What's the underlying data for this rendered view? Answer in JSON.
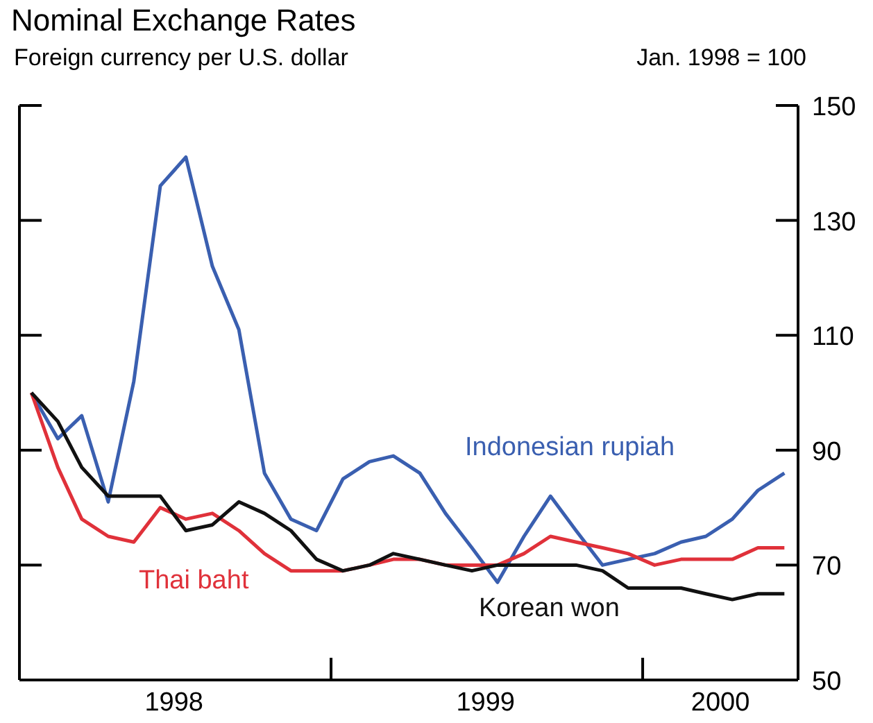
{
  "chart_data": {
    "type": "line",
    "title": "Nominal Exchange Rates",
    "subtitle": "Foreign currency per U.S. dollar",
    "ylabel": "Jan. 1998 = 100",
    "x": [
      "1998-01-15",
      "1998-02-15",
      "1998-03-15",
      "1998-04-15",
      "1998-05-15",
      "1998-06-15",
      "1998-07-15",
      "1998-08-15",
      "1998-09-15",
      "1998-10-15",
      "1998-11-15",
      "1998-12-15",
      "1999-01-15",
      "1999-02-15",
      "1999-03-15",
      "1999-04-15",
      "1999-05-15",
      "1999-06-15",
      "1999-07-15",
      "1999-08-15",
      "1999-09-15",
      "1999-10-15",
      "1999-11-15",
      "1999-12-15",
      "2000-01-15",
      "2000-02-15",
      "2000-03-15",
      "2000-04-15",
      "2000-05-15",
      "2000-06-15"
    ],
    "series": [
      {
        "name": "Indonesian rupiah",
        "color": "#3a5fb0",
        "values": [
          100,
          92,
          96,
          81,
          102,
          136,
          141,
          122,
          111,
          86,
          78,
          76,
          85,
          88,
          89,
          86,
          79,
          73,
          67,
          75,
          82,
          76,
          70,
          71,
          72,
          74,
          75,
          78,
          83,
          86
        ]
      },
      {
        "name": "Thai baht",
        "color": "#e0313a",
        "values": [
          100,
          87,
          78,
          75,
          74,
          80,
          78,
          79,
          76,
          72,
          69,
          69,
          69,
          70,
          71,
          71,
          70,
          70,
          70,
          72,
          75,
          74,
          73,
          72,
          70,
          71,
          71,
          71,
          73,
          73
        ]
      },
      {
        "name": "Korean won",
        "color": "#111111",
        "values": [
          100,
          95,
          87,
          82,
          82,
          82,
          76,
          77,
          81,
          79,
          76,
          71,
          69,
          70,
          72,
          71,
          70,
          69,
          70,
          70,
          70,
          70,
          69,
          66,
          66,
          66,
          65,
          64,
          65,
          65
        ]
      }
    ],
    "xlim": [
      "1998-01-01",
      "2000-07-01"
    ],
    "xticks": [
      {
        "value": "1998-07-01",
        "label": "1998"
      },
      {
        "value": "1999-01-01",
        "label": null
      },
      {
        "value": "1999-07-01",
        "label": "1999"
      },
      {
        "value": "2000-01-01",
        "label": null
      },
      {
        "value": "2000-04-01",
        "label": "2000"
      }
    ],
    "ylim": [
      50,
      150
    ],
    "yticks": [
      50,
      70,
      90,
      110,
      130,
      150
    ],
    "marker": "none",
    "line_style": "solid"
  }
}
